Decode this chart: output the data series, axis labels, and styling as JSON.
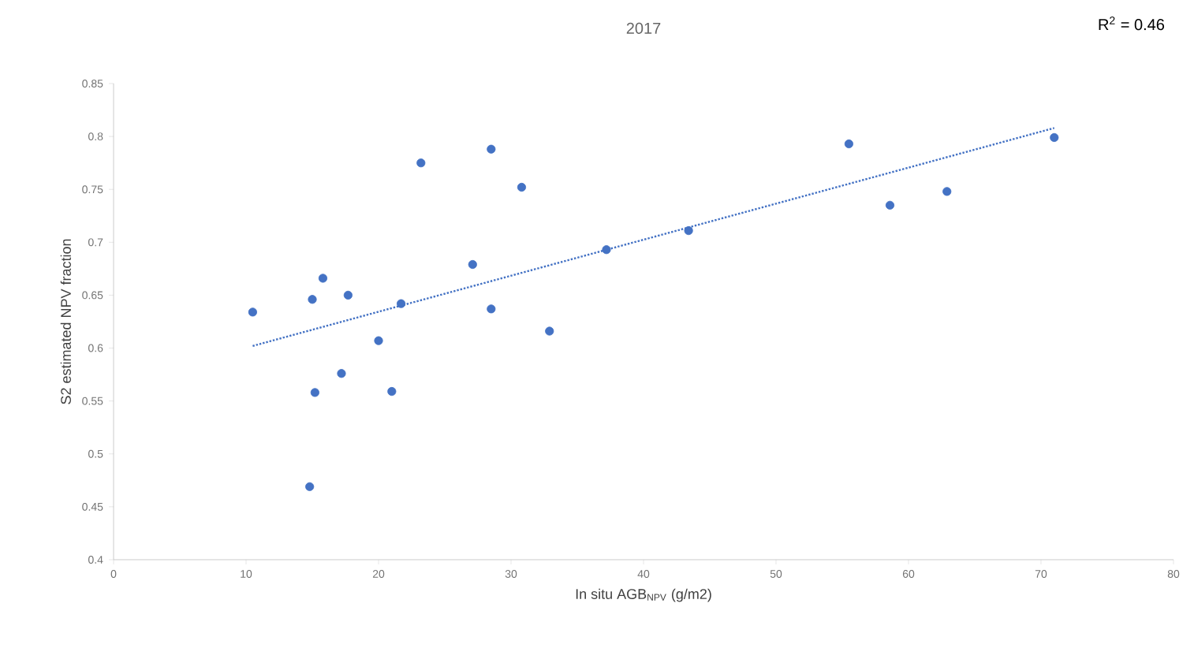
{
  "chart_data": {
    "type": "scatter",
    "title": "2017",
    "xlabel": "In situ AGB$_{NPV}$ (g/m2)",
    "ylabel": "S2 estimated NPV fraction",
    "annotations": [
      "R$^{2}$ = 0.46"
    ],
    "xlim": [
      0,
      80
    ],
    "xticks": [
      0,
      10,
      20,
      30,
      40,
      50,
      60,
      70,
      80
    ],
    "ylim": [
      0.4,
      0.85
    ],
    "yticks": [
      0.4,
      0.45,
      0.5,
      0.55,
      0.6,
      0.65,
      0.7,
      0.75,
      0.8,
      0.85
    ],
    "grid": false,
    "marker": "circle",
    "series": [
      {
        "color": "#4472c4",
        "x": [
          10.5,
          15,
          15.8,
          17.7,
          15.2,
          17.2,
          14.8,
          20,
          21,
          21.7,
          23.2,
          27.1,
          28.5,
          28.5,
          30.8,
          32.9,
          37.2,
          43.4,
          55.5,
          58.6,
          62.9,
          71
        ],
        "values": [
          0.634,
          0.646,
          0.666,
          0.65,
          0.558,
          0.576,
          0.469,
          0.607,
          0.559,
          0.642,
          0.775,
          0.679,
          0.788,
          0.637,
          0.752,
          0.616,
          0.693,
          0.711,
          0.793,
          0.735,
          0.748,
          0.799
        ]
      },
      {
        "type": "line",
        "color": "#4472c4",
        "line_style": "dotted",
        "marker": "none",
        "x": [
          10.5,
          71
        ],
        "values": [
          0.602,
          0.808
        ]
      }
    ]
  }
}
